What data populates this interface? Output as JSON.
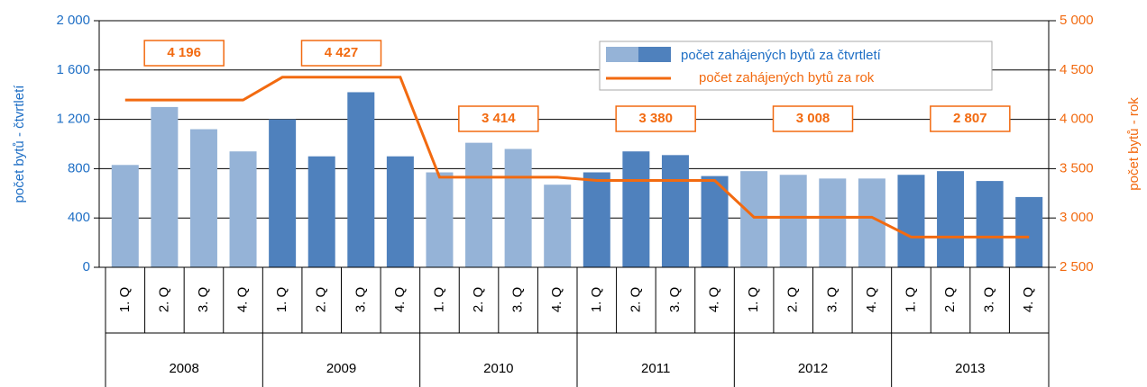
{
  "chart_data": {
    "type": "bar_line",
    "categories": [
      "1. Q",
      "2. Q",
      "3. Q",
      "4. Q",
      "1. Q",
      "2. Q",
      "3. Q",
      "4. Q",
      "1. Q",
      "2. Q",
      "3. Q",
      "4. Q",
      "1. Q",
      "2. Q",
      "3. Q",
      "4. Q",
      "1. Q",
      "2. Q",
      "3. Q",
      "4. Q",
      "1. Q",
      "2. Q",
      "3. Q",
      "4. Q"
    ],
    "years": [
      "2008",
      "2009",
      "2010",
      "2011",
      "2012",
      "2013"
    ],
    "series": [
      {
        "name": "počet zahájených bytů za čtvrtletí",
        "type": "bar",
        "colors": [
          "#95b3d7",
          "#4f81bd"
        ],
        "values": [
          830,
          1300,
          1120,
          940,
          1200,
          900,
          1420,
          900,
          770,
          1010,
          960,
          670,
          770,
          940,
          910,
          740,
          780,
          750,
          720,
          720,
          750,
          780,
          700,
          570
        ]
      },
      {
        "name": "počet zahájených bytů za rok",
        "type": "line",
        "axis": "y2",
        "color": "#f26a10",
        "values": [
          4196,
          4196,
          4196,
          4196,
          4427,
          4427,
          4427,
          4427,
          3414,
          3414,
          3414,
          3414,
          3380,
          3380,
          3380,
          3380,
          3008,
          3008,
          3008,
          3008,
          2807,
          2807,
          2807,
          2807
        ],
        "value_labels": [
          "4 196",
          null,
          null,
          null,
          "4 427",
          null,
          null,
          null,
          "3 414",
          null,
          null,
          null,
          "3 380",
          null,
          null,
          null,
          "3 008",
          null,
          null,
          null,
          "2 807",
          null,
          null,
          null
        ]
      }
    ],
    "ylabel": "počet bytů - čtvrtletí",
    "y2label": "počet bytů - rok",
    "ylim": [
      0,
      2000
    ],
    "yticks": [
      0,
      400,
      800,
      {
        "value": 1200,
        "label": "1 200"
      },
      {
        "value": 1600,
        "label": "1 600"
      },
      {
        "value": 2000,
        "label": "2 000"
      }
    ],
    "y2lim": [
      2500,
      5000
    ],
    "y2ticks": [
      {
        "value": 2500,
        "label": "2 500"
      },
      {
        "value": 3000,
        "label": "3 000"
      },
      {
        "value": 3500,
        "label": "3 500"
      },
      {
        "value": 4000,
        "label": "4 000"
      },
      {
        "value": 4500,
        "label": "4 500"
      },
      {
        "value": 5000,
        "label": "5 000"
      }
    ],
    "grid": true
  }
}
